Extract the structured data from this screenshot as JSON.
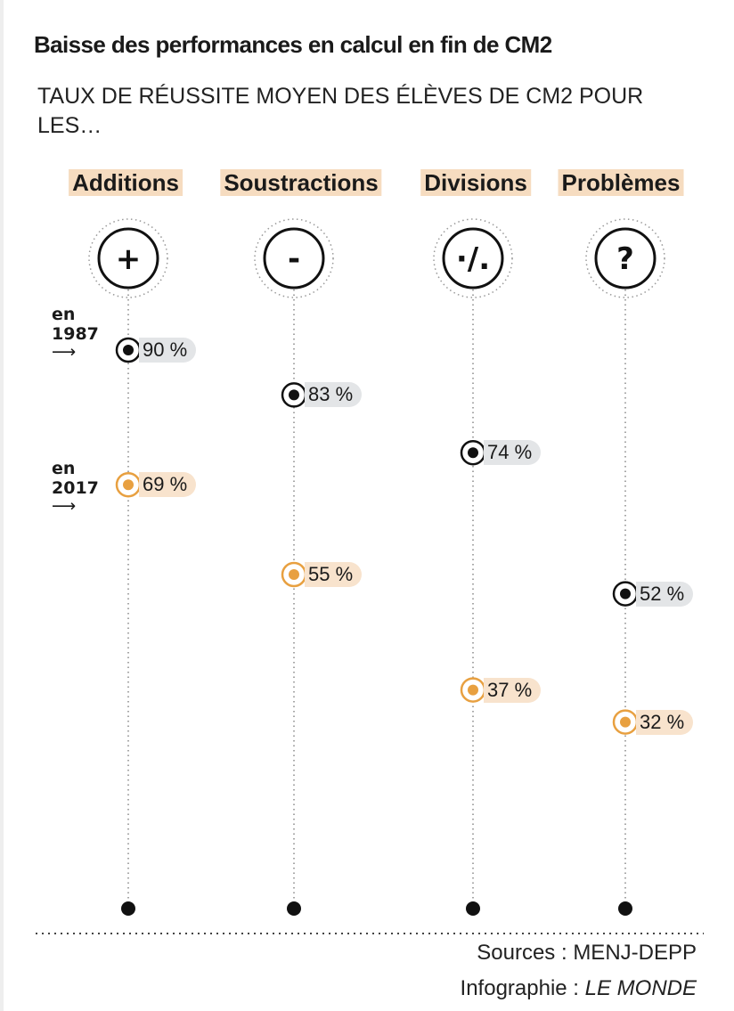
{
  "title": "Baisse des performances en calcul en fin de CM2",
  "subtitle": "TAUX DE RÉUSSITE MOYEN DES ÉLÈVES DE CM2 POUR LES…",
  "chart_data": {
    "type": "dot-plot",
    "categories": [
      "Additions",
      "Soustractions",
      "Divisions",
      "Problèmes"
    ],
    "icons": [
      "+",
      "-",
      "·/.",
      "?"
    ],
    "series": [
      {
        "name": "en 1987",
        "values": [
          90,
          83,
          74,
          52
        ],
        "labels": [
          "90 %",
          "83 %",
          "74 %",
          "52 %"
        ],
        "color": "#111111"
      },
      {
        "name": "en 2017",
        "values": [
          69,
          55,
          37,
          32
        ],
        "labels": [
          "69 %",
          "55 %",
          "37 %",
          "32 %"
        ],
        "color": "#e8a040"
      }
    ],
    "legend": {
      "en1987_line1": "en",
      "en1987_line2": "1987",
      "en2017_line1": "en",
      "en2017_line2": "2017"
    },
    "unit": "%"
  },
  "footer": {
    "sources": "Sources : MENJ-DEPP",
    "infographie_prefix": "Infographie : ",
    "infographie_brand": "LE MONDE"
  }
}
